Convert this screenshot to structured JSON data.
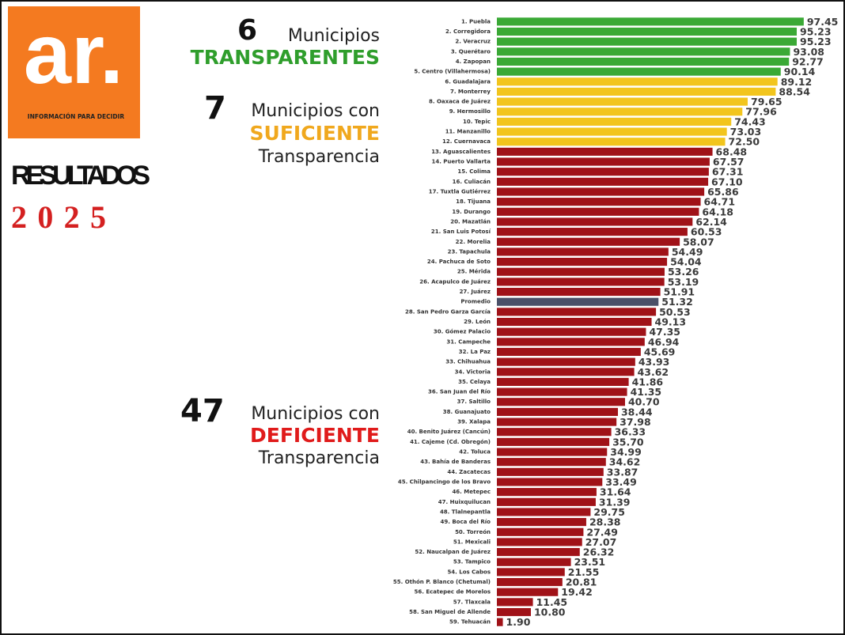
{
  "sidebar": {
    "logo": "ar.",
    "logo_caption": "INFORMACIÓN PARA DECIDIR",
    "results": "RESULTADOS",
    "year": "2025",
    "groups": [
      {
        "count": "6",
        "text": "Municipios",
        "level": "TRANSPARENTES",
        "color": "#2f9e2c"
      },
      {
        "count": "7",
        "text": "Municipios con",
        "level": "SUFICIENTE",
        "suffix": "Transparencia",
        "color": "#f0a81e"
      },
      {
        "count": "47",
        "text": "Municipios con",
        "level": "DEFICIENTE",
        "suffix": "Transparencia",
        "color": "#e01b1b"
      }
    ]
  },
  "chart_data": {
    "type": "hbar",
    "categories": [
      "1. Puebla",
      "2. Corregidora",
      "2. Veracruz",
      "3. Querétaro",
      "4. Zapopan",
      "5. Centro (Villahermosa)",
      "6. Guadalajara",
      "7. Monterrey",
      "8. Oaxaca de Juárez",
      "9. Hermosillo",
      "10. Tepic",
      "11. Manzanillo",
      "12. Cuernavaca",
      "13. Aguascalientes",
      "14. Puerto Vallarta",
      "15. Colima",
      "16. Culiacán",
      "17. Tuxtla Gutiérrez",
      "18. Tijuana",
      "19. Durango",
      "20. Mazatlán",
      "21. San Luis Potosí",
      "22. Morelia",
      "23. Tapachula",
      "24. Pachuca de Soto",
      "25. Mérida",
      "26. Acapulco de Juárez",
      "27. Juárez",
      "Promedio",
      "28. San Pedro Garza García",
      "29. León",
      "30. Gómez Palacio",
      "31. Campeche",
      "32. La Paz",
      "33. Chihuahua",
      "34. Victoria",
      "35. Celaya",
      "36. San Juan del Río",
      "37. Saltillo",
      "38. Guanajuato",
      "39. Xalapa",
      "40. Benito Juárez (Cancún)",
      "41. Cajeme (Cd. Obregón)",
      "42. Toluca",
      "43. Bahía de Banderas",
      "44. Zacatecas",
      "45. Chilpancingo de los Bravo",
      "46. Metepec",
      "47. Huixquilucan",
      "48. Tlalnepantla",
      "49. Boca del Río",
      "50. Torreón",
      "51. Mexicali",
      "52. Naucalpan de Juárez",
      "53. Tampico",
      "54. Los Cabos",
      "55. Othón P. Blanco (Chetumal)",
      "56. Ecatepec de Morelos",
      "57. Tlaxcala",
      "58. San Miguel de Allende",
      "59. Tehuacán"
    ],
    "values": [
      97.45,
      95.23,
      95.23,
      93.08,
      92.77,
      90.14,
      89.12,
      88.54,
      79.65,
      77.96,
      74.43,
      73.03,
      72.5,
      68.48,
      67.57,
      67.31,
      67.1,
      65.86,
      64.71,
      64.18,
      62.14,
      60.53,
      58.07,
      54.49,
      54.04,
      53.26,
      53.19,
      51.91,
      51.32,
      50.53,
      49.13,
      47.35,
      46.94,
      45.69,
      43.93,
      43.62,
      41.86,
      41.35,
      40.7,
      38.44,
      37.98,
      36.33,
      35.7,
      34.99,
      34.62,
      33.87,
      33.49,
      31.64,
      31.39,
      29.75,
      28.38,
      27.49,
      27.07,
      26.32,
      23.51,
      21.55,
      20.81,
      19.42,
      11.45,
      10.8,
      1.9
    ],
    "value_labels": [
      "97.45",
      "95.23",
      "95.23",
      "93.08",
      "92.77",
      "90.14",
      "89.12",
      "88.54",
      "79.65",
      "77.96",
      "74.43",
      "73.03",
      "72.50",
      "68.48",
      "67.57",
      "67.31",
      "67.10",
      "65.86",
      "64.71",
      "64.18",
      "62.14",
      "60.53",
      "58.07",
      "54.49",
      "54.04",
      "53.26",
      "53.19",
      "51.91",
      "51.32",
      "50.53",
      "49.13",
      "47.35",
      "46.94",
      "45.69",
      "43.93",
      "43.62",
      "41.86",
      "41.35",
      "40.70",
      "38.44",
      "37.98",
      "36.33",
      "35.70",
      "34.99",
      "34.62",
      "33.87",
      "33.49",
      "31.64",
      "31.39",
      "29.75",
      "28.38",
      "27.49",
      "27.07",
      "26.32",
      "23.51",
      "21.55",
      "20.81",
      "19.42",
      "11.45",
      "10.80",
      "1.90"
    ],
    "colors": [
      "#3aa935",
      "#3aa935",
      "#3aa935",
      "#3aa935",
      "#3aa935",
      "#3aa935",
      "#f2c51d",
      "#f2c51d",
      "#f2c51d",
      "#f2c51d",
      "#f2c51d",
      "#f2c51d",
      "#f2c51d",
      "#a01218",
      "#a01218",
      "#a01218",
      "#a01218",
      "#a01218",
      "#a01218",
      "#a01218",
      "#a01218",
      "#a01218",
      "#a01218",
      "#a01218",
      "#a01218",
      "#a01218",
      "#a01218",
      "#a01218",
      "#4a5068",
      "#a01218",
      "#a01218",
      "#a01218",
      "#a01218",
      "#a01218",
      "#a01218",
      "#a01218",
      "#a01218",
      "#a01218",
      "#a01218",
      "#a01218",
      "#a01218",
      "#a01218",
      "#a01218",
      "#a01218",
      "#a01218",
      "#a01218",
      "#a01218",
      "#a01218",
      "#a01218",
      "#a01218",
      "#a01218",
      "#a01218",
      "#a01218",
      "#a01218",
      "#a01218",
      "#a01218",
      "#a01218",
      "#a01218",
      "#a01218",
      "#a01218",
      "#a01218"
    ],
    "highlight": {
      "index": 28,
      "color": "#d0312d"
    },
    "xlim": [
      0,
      100
    ]
  }
}
